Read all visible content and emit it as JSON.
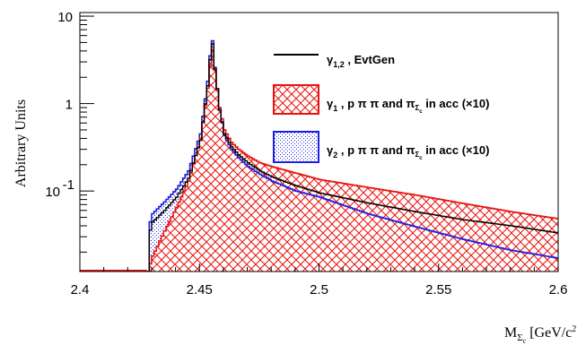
{
  "chart_data": {
    "type": "line",
    "title": "",
    "xlabel": "M_Σc [GeV/c²]",
    "xlabel_main": "M",
    "xlabel_sub": "Σ",
    "xlabel_subsub": "c",
    "xlabel_units": "[GeV/c",
    "xlabel_units_sup": "2",
    "xlabel_units_end": "]",
    "ylabel": "Arbitrary Units",
    "xlim": [
      2.4,
      2.6
    ],
    "ylim": [
      0.012,
      11
    ],
    "yscale": "log",
    "grid": false,
    "legend_position": "top-right",
    "x_ticks": [
      "2.4",
      "2.45",
      "2.5",
      "2.55",
      "2.6"
    ],
    "x_tick_values": [
      2.4,
      2.45,
      2.5,
      2.55,
      2.6
    ],
    "y_ticks": [
      {
        "value": 10,
        "base": "10",
        "exp": ""
      },
      {
        "value": 1,
        "base": "1",
        "exp": ""
      },
      {
        "value": 0.1,
        "base": "10",
        "exp": "-1"
      }
    ],
    "series": [
      {
        "name": "γ1,2 , EvtGen",
        "style": "line",
        "color": "#000000",
        "x": [
          2.428,
          2.4285,
          2.43,
          2.435,
          2.44,
          2.445,
          2.45,
          2.453,
          2.4548,
          2.456,
          2.458,
          2.46,
          2.463,
          2.466,
          2.47,
          2.475,
          2.48,
          2.49,
          2.5,
          2.52,
          2.54,
          2.56,
          2.58,
          2.6
        ],
        "y": [
          0.012,
          0.032,
          0.044,
          0.06,
          0.085,
          0.14,
          0.38,
          1.6,
          5.5,
          2.5,
          0.85,
          0.45,
          0.32,
          0.26,
          0.21,
          0.17,
          0.145,
          0.115,
          0.095,
          0.073,
          0.058,
          0.047,
          0.04,
          0.033
        ]
      },
      {
        "name": "γ1 , p π π and πΣc in acc (×10)",
        "style": "hatched-histogram",
        "color": "#e8120c",
        "x": [
          2.428,
          2.43,
          2.435,
          2.44,
          2.445,
          2.45,
          2.453,
          2.4548,
          2.456,
          2.458,
          2.46,
          2.463,
          2.466,
          2.47,
          2.475,
          2.48,
          2.49,
          2.5,
          2.52,
          2.54,
          2.56,
          2.58,
          2.6
        ],
        "y": [
          0.012,
          0.018,
          0.035,
          0.065,
          0.13,
          0.4,
          1.5,
          4.5,
          2.4,
          0.9,
          0.5,
          0.36,
          0.3,
          0.25,
          0.21,
          0.19,
          0.16,
          0.135,
          0.11,
          0.09,
          0.072,
          0.058,
          0.048
        ]
      },
      {
        "name": "γ2 , p π π and πΣc in acc (×10)",
        "style": "dotted-histogram",
        "color": "#1c1ee0",
        "x": [
          2.428,
          2.4285,
          2.43,
          2.435,
          2.44,
          2.445,
          2.45,
          2.453,
          2.4548,
          2.456,
          2.458,
          2.46,
          2.463,
          2.466,
          2.47,
          2.475,
          2.48,
          2.49,
          2.5,
          2.52,
          2.54,
          2.56,
          2.58,
          2.6
        ],
        "y": [
          0.012,
          0.04,
          0.055,
          0.075,
          0.105,
          0.17,
          0.45,
          1.8,
          6.0,
          2.6,
          0.85,
          0.43,
          0.3,
          0.24,
          0.19,
          0.155,
          0.13,
          0.1,
          0.085,
          0.055,
          0.039,
          0.028,
          0.021,
          0.017
        ]
      }
    ],
    "legend": [
      {
        "kind": "line",
        "main": "γ",
        "sub": "1,2",
        "rest": " , EvtGen"
      },
      {
        "kind": "hatch",
        "main": "γ",
        "sub": "1",
        "rest": " , p π π and π",
        "sub2": "Σ",
        "subsub": "c",
        "tail": " in acc (×10)"
      },
      {
        "kind": "dots",
        "main": "γ",
        "sub": "2",
        "rest": " , p π π and π",
        "sub2": "Σ",
        "subsub": "c",
        "tail": " in acc (×10)"
      }
    ]
  }
}
